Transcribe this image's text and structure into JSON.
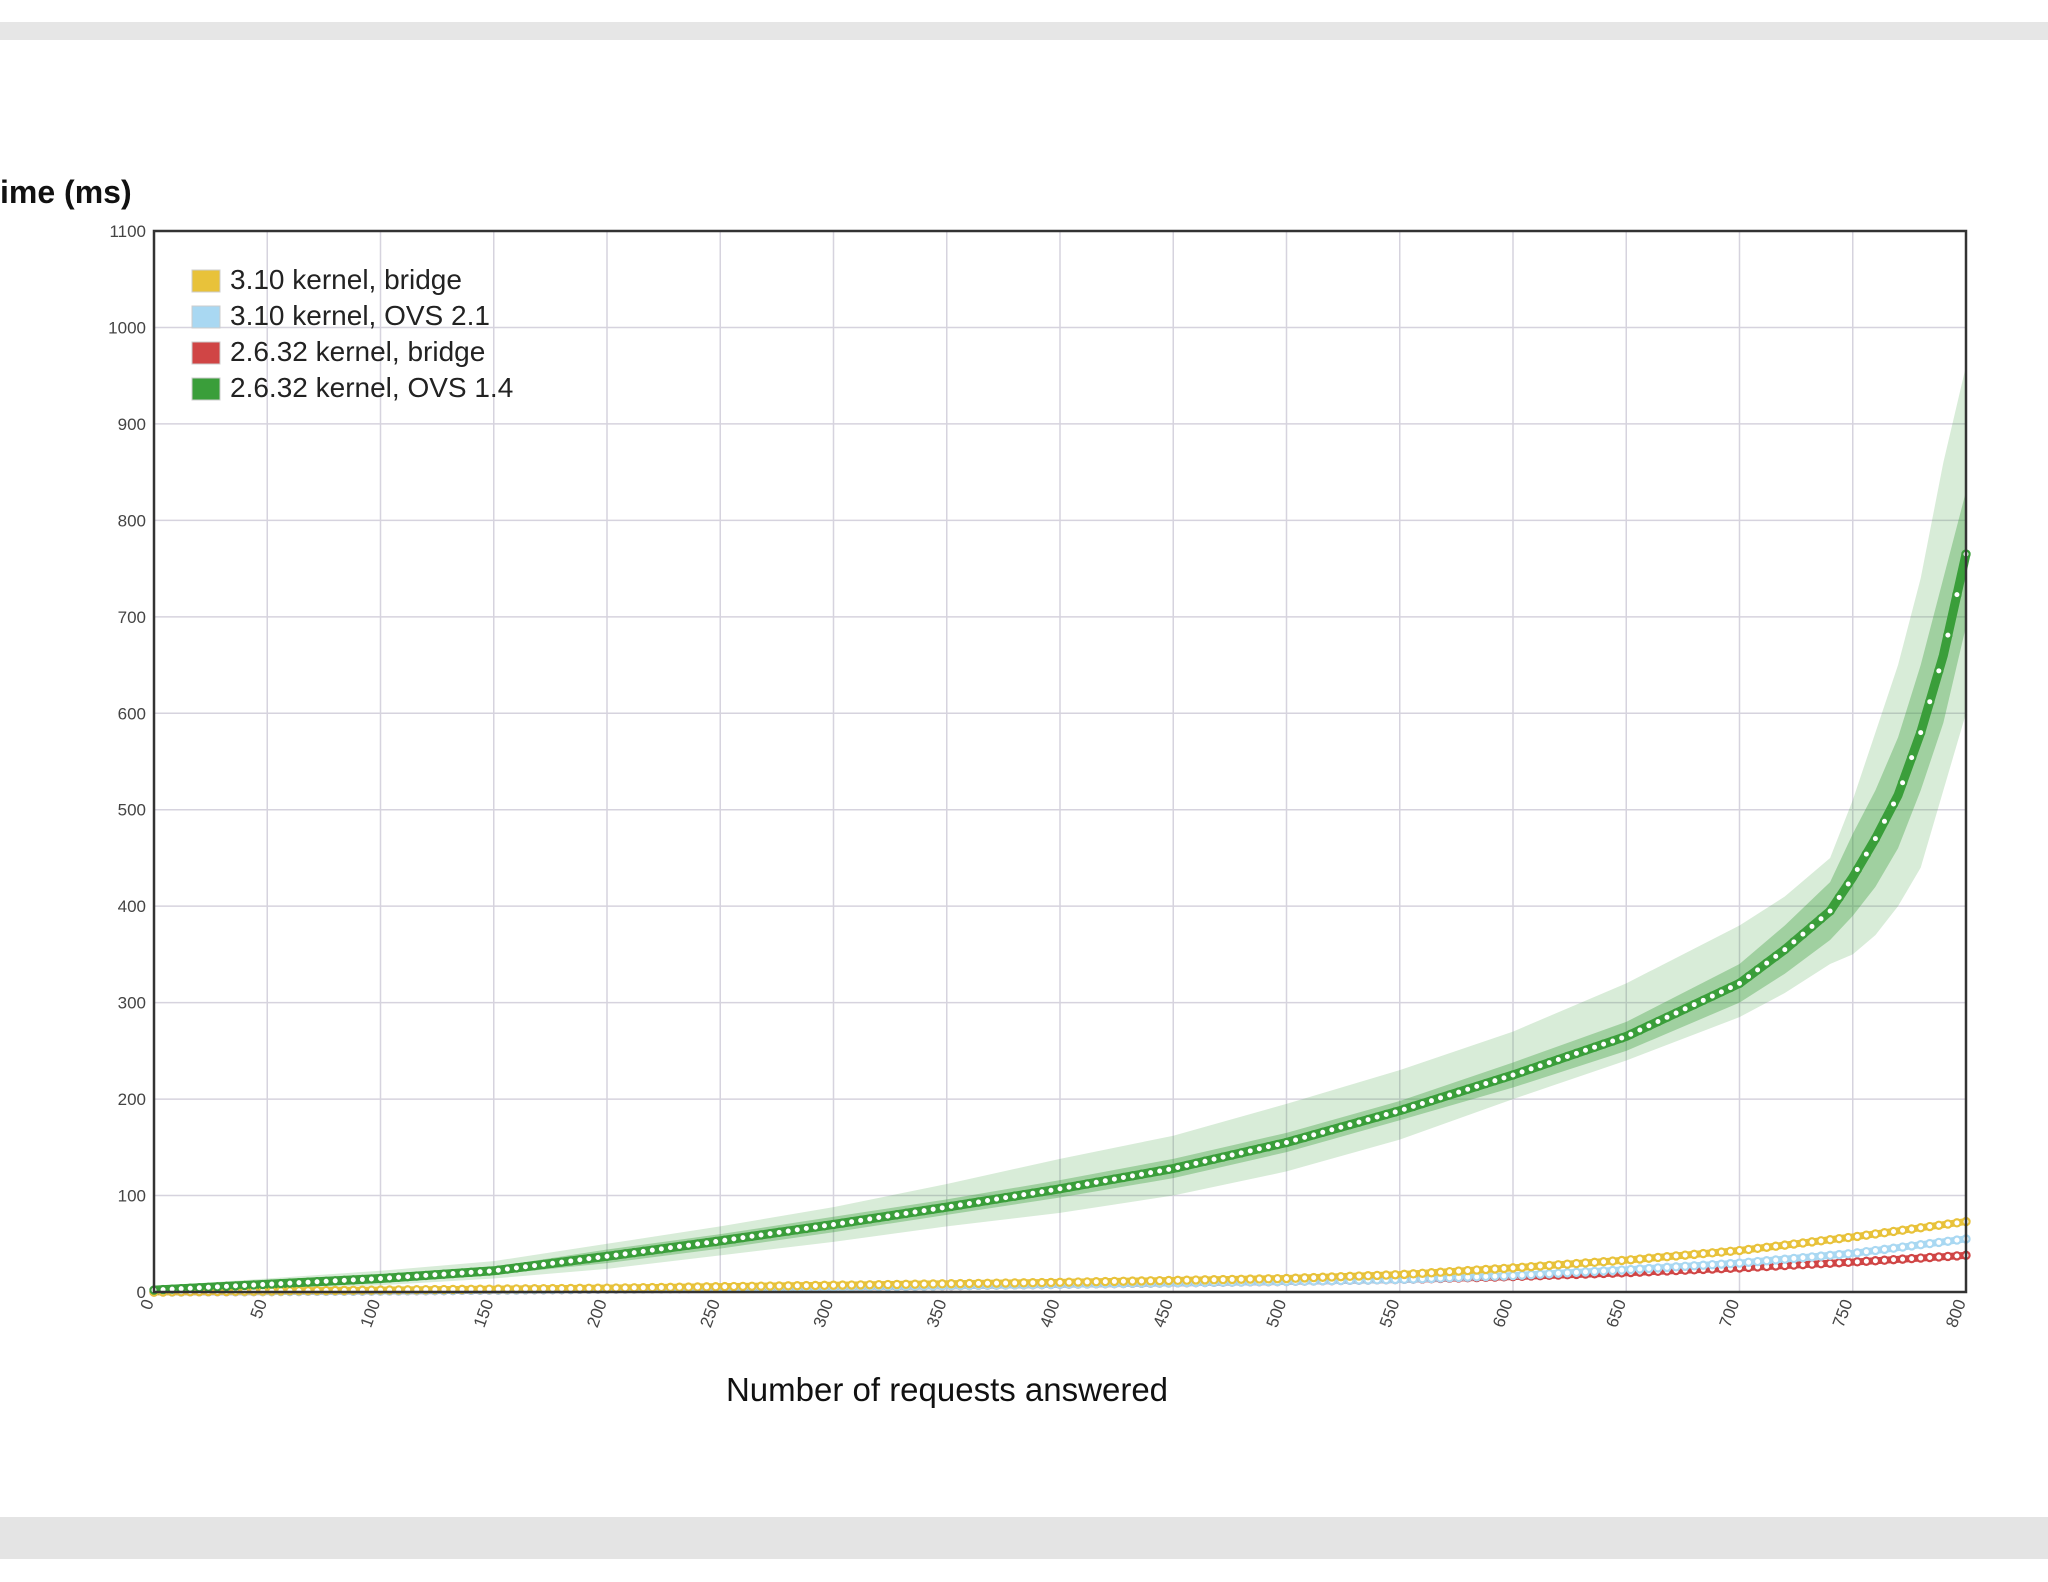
{
  "chart_data": {
    "type": "line",
    "title": "",
    "xlabel": "Number of requests answered",
    "ylabel": "ime (ms)",
    "xlim": [
      0,
      800
    ],
    "ylim": [
      0,
      1100
    ],
    "x_ticks": [
      "0",
      "50",
      "100",
      "150",
      "200",
      "250",
      "300",
      "350",
      "400",
      "450",
      "500",
      "550",
      "600",
      "650",
      "700",
      "750",
      "800"
    ],
    "y_ticks": [
      "0",
      "100",
      "200",
      "300",
      "400",
      "500",
      "600",
      "700",
      "800",
      "900",
      "1000",
      "1100"
    ],
    "grid": true,
    "legend_position": "top-left",
    "series": [
      {
        "name": "3.10 kernel, bridge",
        "color": "#e8c23a",
        "x": [
          0,
          100,
          200,
          300,
          400,
          500,
          550,
          600,
          650,
          700,
          750,
          800
        ],
        "y": [
          0,
          2,
          4,
          7,
          10,
          14,
          18,
          25,
          33,
          43,
          57,
          73
        ]
      },
      {
        "name": "3.10 kernel, OVS 2.1",
        "color": "#a9d8f2",
        "x": [
          0,
          100,
          200,
          300,
          400,
          500,
          550,
          600,
          650,
          700,
          750,
          800
        ],
        "y": [
          0,
          1,
          3,
          5,
          8,
          11,
          13,
          17,
          23,
          30,
          40,
          55
        ]
      },
      {
        "name": "2.6.32 kernel, bridge",
        "color": "#d04545",
        "x": [
          0,
          100,
          200,
          300,
          400,
          500,
          550,
          600,
          650,
          700,
          750,
          800
        ],
        "y": [
          0,
          1,
          3,
          5,
          8,
          11,
          13,
          16,
          20,
          25,
          31,
          38
        ]
      },
      {
        "name": "2.6.32 kernel, OVS 1.4",
        "color": "#3a9e3a",
        "x": [
          0,
          50,
          100,
          150,
          200,
          250,
          300,
          350,
          400,
          450,
          500,
          550,
          600,
          650,
          700,
          720,
          740,
          750,
          760,
          770,
          780,
          790,
          800
        ],
        "y": [
          2,
          8,
          14,
          22,
          37,
          53,
          70,
          88,
          107,
          128,
          155,
          188,
          225,
          265,
          320,
          355,
          395,
          430,
          470,
          515,
          580,
          660,
          765
        ],
        "band_inner_low": [
          0,
          5,
          10,
          18,
          30,
          45,
          62,
          80,
          98,
          118,
          145,
          178,
          212,
          250,
          300,
          330,
          365,
          390,
          420,
          460,
          520,
          590,
          690
        ],
        "band_inner_high": [
          4,
          11,
          18,
          26,
          44,
          60,
          78,
          96,
          116,
          138,
          165,
          198,
          238,
          280,
          340,
          380,
          425,
          475,
          520,
          575,
          650,
          740,
          830
        ],
        "band_outer_low": [
          0,
          3,
          7,
          14,
          24,
          38,
          52,
          68,
          82,
          100,
          125,
          158,
          200,
          240,
          285,
          310,
          340,
          350,
          370,
          400,
          440,
          520,
          600
        ],
        "band_outer_high": [
          6,
          14,
          22,
          32,
          50,
          68,
          88,
          112,
          138,
          162,
          195,
          230,
          270,
          320,
          380,
          410,
          450,
          510,
          580,
          650,
          740,
          860,
          960
        ]
      }
    ]
  }
}
